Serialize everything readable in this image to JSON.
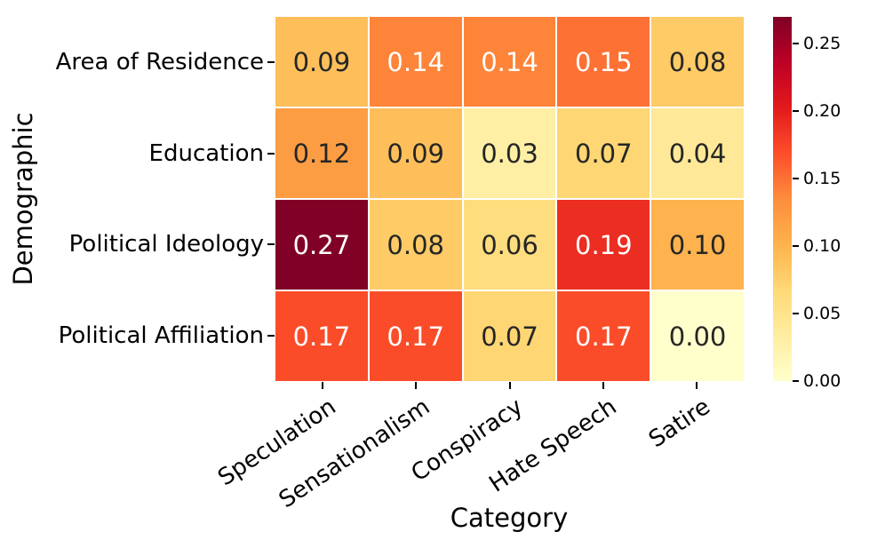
{
  "chart_data": {
    "type": "heatmap",
    "title": "",
    "xlabel": "Category",
    "ylabel": "Demographic",
    "x_categories": [
      "Speculation",
      "Sensationalism",
      "Conspiracy",
      "Hate Speech",
      "Satire"
    ],
    "y_categories": [
      "Area of Residence",
      "Education",
      "Political Ideology",
      "Political Affiliation"
    ],
    "values": [
      [
        0.09,
        0.14,
        0.14,
        0.15,
        0.08
      ],
      [
        0.12,
        0.09,
        0.03,
        0.07,
        0.04
      ],
      [
        0.27,
        0.08,
        0.06,
        0.19,
        0.1
      ],
      [
        0.17,
        0.17,
        0.07,
        0.17,
        0.0
      ]
    ],
    "value_decimals": 2,
    "vmin": 0.0,
    "vmax": 0.27,
    "colormap": "YlOrRd",
    "colormap_stops": [
      "#ffffcc",
      "#ffeda0",
      "#fed976",
      "#feb24c",
      "#fd8d3c",
      "#fc4e2a",
      "#e31a1c",
      "#bd0026",
      "#800026"
    ],
    "colorbar_ticks": [
      0.0,
      0.05,
      0.1,
      0.15,
      0.2,
      0.25
    ],
    "colorbar_tick_labels": [
      "0.00",
      "0.05",
      "0.10",
      "0.15",
      "0.20",
      "0.25"
    ],
    "annotation_color_dark": "#262626",
    "annotation_color_light": "#ffffff",
    "grid_line_color": "#ffffff",
    "background_color": "#ffffff",
    "legend_position": "right-colorbar",
    "grid": false
  }
}
